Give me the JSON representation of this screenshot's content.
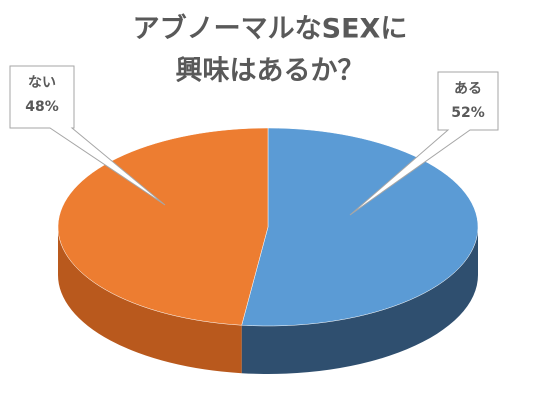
{
  "chart_data": {
    "type": "pie3d",
    "title": [
      "アブノーマルなSEXに",
      "興味はあるか？"
    ],
    "categories": [
      "ある",
      "ない"
    ],
    "values": [
      52,
      48
    ],
    "value_labels": [
      "52%",
      "48%"
    ],
    "colors": [
      "#5b9bd5",
      "#ed7d31"
    ],
    "side_colors": [
      "#2f4f6f",
      "#b9591d"
    ]
  }
}
